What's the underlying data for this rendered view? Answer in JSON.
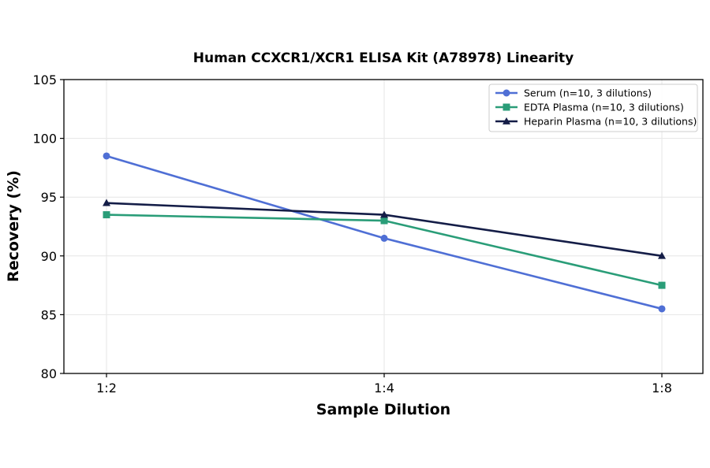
{
  "chart_data": {
    "type": "line",
    "title": "Human CCXCR1/XCR1 ELISA Kit (A78978) Linearity",
    "xlabel": "Sample Dilution",
    "ylabel": "Recovery (%)",
    "categories": [
      "1:2",
      "1:4",
      "1:8"
    ],
    "ylim": [
      80,
      105
    ],
    "yticks": [
      80,
      85,
      90,
      95,
      100,
      105
    ],
    "grid": true,
    "legend_position": "top-right",
    "series": [
      {
        "name": "Serum (n=10, 3 dilutions)",
        "values": [
          98.5,
          91.5,
          85.5
        ],
        "color": "#4f6fd5",
        "marker": "circle"
      },
      {
        "name": "EDTA Plasma (n=10, 3 dilutions)",
        "values": [
          93.5,
          93.0,
          87.5
        ],
        "color": "#2a9d78",
        "marker": "square"
      },
      {
        "name": "Heparin Plasma (n=10, 3 dilutions)",
        "values": [
          94.5,
          93.5,
          90.0
        ],
        "color": "#141d47",
        "marker": "triangle"
      }
    ]
  }
}
